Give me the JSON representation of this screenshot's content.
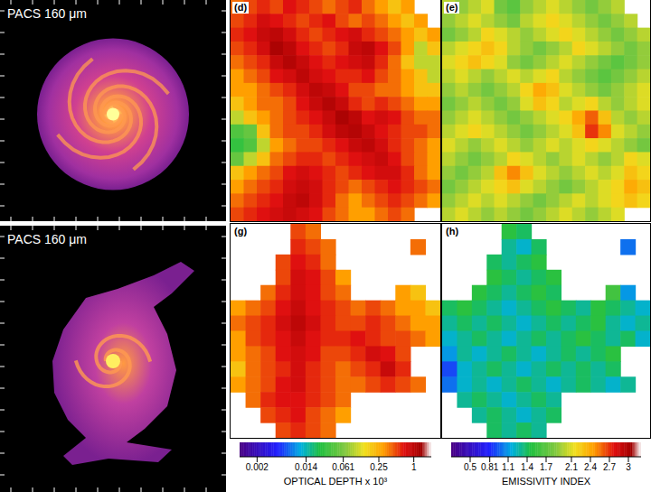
{
  "images": [
    {
      "label": "PACS 160 μm"
    },
    {
      "label": "PACS 160 μm"
    }
  ],
  "chart_data": [
    {
      "type": "heatmap",
      "title": "(d)",
      "tick_labels": false,
      "cells": [
        [
          0.4,
          0.5,
          0.6,
          0.5,
          0.7,
          0.6,
          0.5,
          0.4,
          0.5,
          0.6,
          0.4,
          0.3,
          0.2,
          0.3,
          null,
          null
        ],
        [
          0.5,
          0.6,
          0.8,
          0.7,
          0.6,
          0.5,
          0.6,
          0.7,
          0.5,
          0.4,
          0.5,
          0.4,
          0.3,
          0.2,
          0.3,
          null
        ],
        [
          0.6,
          0.7,
          0.9,
          1.0,
          0.8,
          0.6,
          0.5,
          0.6,
          0.7,
          0.8,
          0.6,
          0.5,
          0.4,
          0.3,
          0.2,
          0.3
        ],
        [
          0.5,
          0.6,
          0.8,
          1.2,
          1.0,
          0.7,
          0.6,
          0.5,
          0.6,
          0.9,
          1.0,
          0.7,
          0.5,
          0.3,
          0.1,
          0.2
        ],
        [
          0.4,
          0.5,
          0.6,
          0.9,
          1.1,
          0.9,
          0.7,
          0.6,
          0.7,
          0.8,
          0.9,
          0.6,
          0.4,
          0.2,
          0.1,
          0.1
        ],
        [
          0.3,
          0.4,
          0.5,
          0.7,
          0.8,
          1.0,
          0.8,
          0.7,
          0.6,
          0.6,
          0.7,
          0.5,
          0.4,
          0.3,
          0.2,
          0.1
        ],
        [
          0.3,
          0.3,
          0.4,
          0.5,
          0.6,
          0.8,
          1.0,
          0.9,
          0.7,
          0.5,
          0.5,
          0.4,
          0.4,
          0.3,
          0.2,
          0.2
        ],
        [
          0.2,
          0.3,
          0.4,
          0.4,
          0.5,
          0.7,
          0.9,
          1.1,
          0.9,
          0.6,
          0.5,
          0.6,
          0.5,
          0.4,
          0.3,
          0.3
        ],
        [
          0.1,
          0.2,
          0.3,
          0.4,
          0.5,
          0.6,
          0.7,
          0.9,
          1.2,
          1.0,
          0.7,
          0.8,
          0.7,
          0.5,
          0.4,
          0.4
        ],
        [
          0.04,
          0.05,
          0.2,
          0.4,
          0.5,
          0.5,
          0.6,
          0.8,
          1.0,
          1.1,
          0.9,
          0.7,
          0.6,
          0.5,
          0.5,
          0.4
        ],
        [
          0.03,
          0.04,
          0.1,
          0.3,
          0.4,
          0.5,
          0.5,
          0.6,
          0.7,
          0.9,
          1.0,
          0.8,
          0.6,
          0.5,
          0.4,
          0.3
        ],
        [
          0.05,
          0.1,
          0.2,
          0.4,
          0.5,
          0.6,
          0.6,
          0.5,
          0.6,
          0.7,
          0.8,
          0.9,
          0.7,
          0.5,
          0.4,
          0.3
        ],
        [
          0.2,
          0.3,
          0.4,
          0.5,
          0.7,
          0.8,
          0.7,
          0.6,
          0.5,
          0.6,
          0.7,
          0.8,
          0.8,
          0.6,
          0.4,
          0.3
        ],
        [
          0.3,
          0.4,
          0.5,
          0.6,
          0.8,
          0.9,
          0.8,
          0.6,
          0.5,
          0.4,
          0.5,
          0.6,
          0.7,
          0.6,
          0.5,
          0.4
        ],
        [
          0.4,
          0.5,
          0.6,
          0.7,
          0.9,
          1.0,
          0.8,
          0.6,
          0.4,
          0.3,
          0.4,
          0.5,
          0.6,
          0.5,
          0.4,
          0.3
        ],
        [
          0.5,
          0.6,
          0.7,
          0.8,
          0.9,
          0.8,
          0.7,
          0.5,
          0.4,
          0.3,
          0.3,
          0.4,
          0.5,
          0.4,
          null,
          null
        ]
      ]
    },
    {
      "type": "heatmap",
      "title": "(e)",
      "tick_labels": false,
      "cells": [
        [
          2.0,
          1.9,
          2.0,
          2.1,
          1.8,
          1.7,
          1.9,
          2.0,
          2.1,
          2.0,
          1.9,
          1.8,
          1.9,
          2.0,
          null,
          null
        ],
        [
          1.9,
          2.0,
          2.1,
          2.0,
          1.9,
          1.8,
          2.0,
          2.1,
          2.2,
          2.1,
          2.0,
          1.9,
          1.8,
          1.9,
          2.0,
          null
        ],
        [
          1.8,
          1.9,
          2.0,
          2.2,
          2.1,
          2.0,
          1.9,
          2.0,
          2.1,
          2.2,
          2.1,
          2.0,
          1.9,
          1.8,
          1.9,
          2.0
        ],
        [
          2.0,
          2.1,
          2.2,
          2.3,
          2.2,
          2.0,
          1.9,
          1.8,
          1.9,
          2.0,
          2.2,
          2.1,
          2.0,
          1.9,
          1.8,
          1.9
        ],
        [
          2.1,
          2.2,
          2.3,
          2.2,
          2.1,
          1.9,
          1.8,
          1.9,
          2.0,
          2.1,
          2.0,
          1.9,
          1.8,
          1.7,
          1.8,
          1.9
        ],
        [
          2.0,
          2.1,
          2.0,
          1.9,
          2.0,
          2.1,
          2.0,
          2.1,
          2.2,
          2.0,
          1.9,
          1.8,
          1.7,
          1.8,
          1.9,
          2.0
        ],
        [
          1.9,
          2.0,
          1.9,
          1.8,
          1.9,
          2.0,
          2.2,
          2.4,
          2.3,
          2.1,
          2.0,
          1.9,
          1.8,
          1.9,
          2.0,
          2.1
        ],
        [
          1.8,
          1.9,
          2.0,
          1.9,
          1.8,
          1.9,
          2.1,
          2.3,
          2.2,
          2.0,
          2.1,
          2.2,
          2.0,
          1.9,
          2.0,
          2.1
        ],
        [
          1.9,
          2.0,
          2.1,
          2.0,
          1.9,
          1.8,
          1.9,
          2.0,
          2.1,
          2.2,
          2.4,
          2.6,
          2.3,
          2.0,
          1.9,
          2.0
        ],
        [
          2.0,
          2.1,
          2.2,
          2.1,
          2.0,
          1.9,
          1.8,
          1.9,
          2.0,
          2.1,
          2.3,
          2.7,
          2.5,
          2.1,
          2.0,
          1.9
        ],
        [
          2.1,
          2.0,
          1.9,
          2.0,
          2.1,
          2.0,
          1.9,
          2.0,
          2.1,
          2.0,
          2.1,
          2.2,
          2.1,
          2.0,
          1.9,
          1.8
        ],
        [
          2.0,
          1.9,
          1.8,
          1.9,
          2.0,
          2.2,
          2.1,
          2.0,
          1.9,
          2.0,
          2.1,
          2.0,
          1.9,
          2.0,
          2.2,
          2.1
        ],
        [
          1.9,
          1.8,
          1.9,
          2.0,
          2.3,
          2.5,
          2.3,
          2.1,
          2.0,
          1.9,
          2.0,
          2.1,
          2.0,
          2.1,
          2.3,
          2.2
        ],
        [
          1.8,
          1.9,
          2.0,
          2.1,
          2.2,
          2.3,
          2.1,
          2.0,
          1.9,
          1.8,
          1.9,
          2.0,
          2.1,
          2.2,
          2.4,
          2.3
        ],
        [
          1.9,
          2.0,
          2.1,
          2.0,
          2.1,
          2.0,
          1.9,
          1.8,
          1.9,
          2.0,
          2.1,
          2.0,
          2.1,
          2.2,
          2.3,
          2.2
        ],
        [
          2.0,
          2.1,
          2.0,
          1.9,
          2.0,
          1.9,
          1.8,
          1.9,
          2.0,
          2.1,
          2.0,
          1.9,
          2.0,
          2.1,
          null,
          null
        ]
      ]
    },
    {
      "type": "heatmap",
      "title": "(g)",
      "tick_labels": false,
      "cells": [
        [
          null,
          null,
          null,
          null,
          0.5,
          0.4,
          null,
          null,
          null,
          null,
          null,
          null,
          null,
          null
        ],
        [
          null,
          null,
          null,
          null,
          0.6,
          0.5,
          0.4,
          null,
          null,
          null,
          null,
          null,
          0.4,
          null
        ],
        [
          null,
          null,
          null,
          0.5,
          0.7,
          0.6,
          0.4,
          null,
          null,
          null,
          null,
          null,
          null,
          null
        ],
        [
          null,
          null,
          null,
          0.5,
          0.8,
          0.7,
          0.5,
          0.3,
          null,
          null,
          null,
          null,
          null,
          null
        ],
        [
          null,
          null,
          0.4,
          0.6,
          0.8,
          0.7,
          0.5,
          0.4,
          null,
          null,
          null,
          0.3,
          0.2,
          null
        ],
        [
          0.3,
          0.4,
          0.5,
          0.7,
          0.9,
          0.7,
          0.6,
          0.5,
          0.4,
          0.5,
          0.4,
          0.3,
          0.3,
          0.2
        ],
        [
          0.4,
          0.5,
          0.6,
          0.8,
          1.0,
          0.8,
          0.6,
          0.5,
          0.5,
          0.6,
          0.5,
          0.4,
          0.3,
          0.3
        ],
        [
          0.3,
          0.5,
          0.6,
          0.7,
          0.9,
          0.7,
          0.6,
          0.6,
          0.7,
          0.6,
          0.5,
          0.5,
          0.4,
          0.3
        ],
        [
          0.3,
          0.4,
          0.5,
          0.7,
          0.8,
          0.7,
          0.5,
          0.5,
          0.6,
          0.8,
          0.7,
          0.5,
          null,
          null
        ],
        [
          0.2,
          0.4,
          0.5,
          0.6,
          0.8,
          0.6,
          0.5,
          0.4,
          0.5,
          0.6,
          0.9,
          0.6,
          null,
          null
        ],
        [
          0.3,
          0.4,
          0.5,
          0.7,
          0.8,
          0.6,
          0.5,
          0.4,
          0.4,
          0.5,
          0.6,
          0.5,
          0.4,
          null
        ],
        [
          null,
          0.4,
          0.6,
          0.7,
          0.7,
          0.6,
          0.5,
          0.4,
          null,
          null,
          null,
          null,
          null,
          null
        ],
        [
          null,
          null,
          0.5,
          0.6,
          0.7,
          0.5,
          0.4,
          0.3,
          null,
          null,
          null,
          null,
          null,
          null
        ],
        [
          null,
          null,
          null,
          0.5,
          0.6,
          0.5,
          0.4,
          null,
          null,
          null,
          null,
          null,
          null,
          null
        ]
      ]
    },
    {
      "type": "heatmap",
      "title": "(h)",
      "tick_labels": false,
      "cells": [
        [
          null,
          null,
          null,
          null,
          1.5,
          1.4,
          null,
          null,
          null,
          null,
          null,
          null,
          null,
          null
        ],
        [
          null,
          null,
          null,
          null,
          1.3,
          1.2,
          1.4,
          null,
          null,
          null,
          null,
          null,
          1.0,
          null
        ],
        [
          null,
          null,
          null,
          1.4,
          1.3,
          1.4,
          1.5,
          null,
          null,
          null,
          null,
          null,
          null,
          null
        ],
        [
          null,
          null,
          null,
          1.5,
          1.4,
          1.3,
          1.4,
          1.5,
          null,
          null,
          null,
          null,
          null,
          null
        ],
        [
          null,
          null,
          1.5,
          1.4,
          1.3,
          1.4,
          1.5,
          1.4,
          null,
          null,
          null,
          1.6,
          1.1,
          null
        ],
        [
          1.4,
          1.5,
          1.4,
          1.3,
          1.2,
          1.3,
          1.4,
          1.5,
          1.4,
          1.3,
          1.5,
          1.4,
          1.3,
          1.2
        ],
        [
          1.3,
          1.4,
          1.3,
          1.4,
          1.3,
          1.2,
          1.3,
          1.4,
          1.3,
          1.4,
          1.5,
          1.3,
          1.2,
          1.3
        ],
        [
          1.2,
          1.3,
          1.4,
          1.3,
          1.2,
          1.3,
          1.4,
          1.3,
          1.4,
          1.5,
          1.4,
          1.3,
          1.4,
          1.2
        ],
        [
          1.1,
          1.3,
          1.2,
          1.3,
          1.4,
          1.3,
          1.2,
          1.3,
          1.4,
          1.3,
          1.4,
          1.5,
          null,
          null
        ],
        [
          0.9,
          1.2,
          1.3,
          1.4,
          1.3,
          1.2,
          1.3,
          1.4,
          1.3,
          1.4,
          1.3,
          1.4,
          null,
          null
        ],
        [
          1.0,
          1.2,
          1.3,
          1.2,
          1.3,
          1.4,
          1.3,
          1.2,
          1.3,
          1.4,
          1.3,
          1.2,
          1.3,
          null
        ],
        [
          null,
          1.3,
          1.4,
          1.3,
          1.2,
          1.3,
          1.4,
          1.3,
          null,
          null,
          null,
          null,
          null,
          null
        ],
        [
          null,
          null,
          1.3,
          1.4,
          1.3,
          1.2,
          1.3,
          1.4,
          null,
          null,
          null,
          null,
          null,
          null
        ],
        [
          null,
          null,
          null,
          1.4,
          1.3,
          1.4,
          1.3,
          null,
          null,
          null,
          null,
          null,
          null,
          null
        ]
      ]
    }
  ],
  "colorbars": [
    {
      "title": "OPTICAL DEPTH x 10³",
      "log": true,
      "range": [
        0.001,
        2
      ],
      "ticks": [
        0.002,
        0.014,
        0.061,
        0.25,
        1
      ]
    },
    {
      "title": "EMISSIVITY INDEX",
      "range": [
        0.2,
        3.2
      ],
      "ticks": [
        0.5,
        0.81,
        1.1,
        1.4,
        1.7,
        2.1,
        2.4,
        2.7,
        3
      ]
    }
  ]
}
